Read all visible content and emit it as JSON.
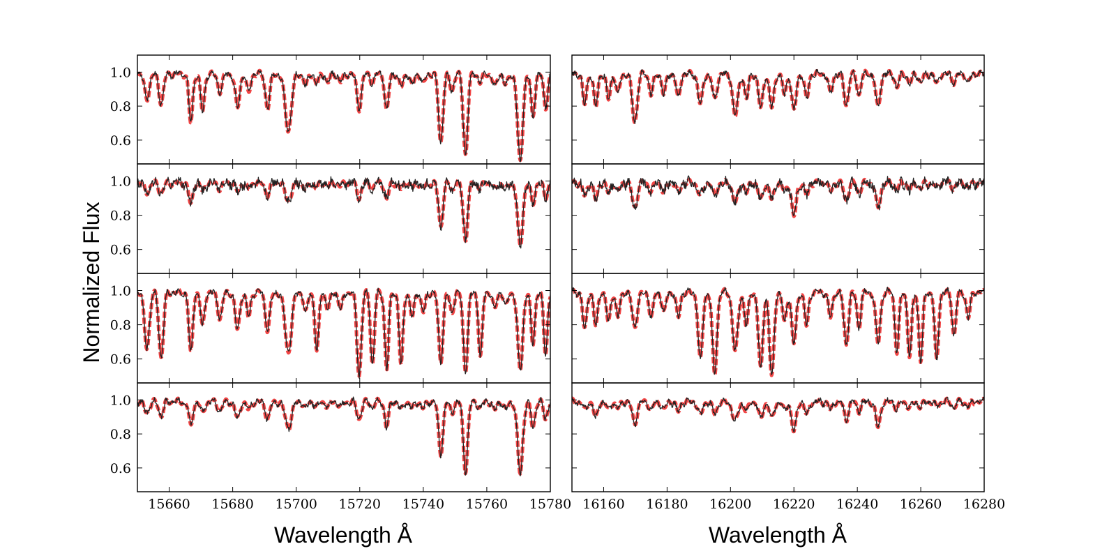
{
  "chart_data": {
    "type": "line",
    "layout": "4 rows x 2 columns, shared axes",
    "ylabel": "Normalized Flux",
    "ylim": [
      0.46,
      1.1
    ],
    "yticks": [
      "0.6",
      "0.8",
      "1.0"
    ],
    "columns": [
      {
        "xlabel": "Wavelength Å",
        "xlim": [
          15650,
          15780
        ],
        "xticks": [
          "15660",
          "15680",
          "15700",
          "15720",
          "15740",
          "15760",
          "15780"
        ],
        "lines": [
          {
            "center": 15653,
            "width": 0.8
          },
          {
            "center": 15657.5,
            "width": 0.7
          },
          {
            "center": 15666.8,
            "width": 0.6
          },
          {
            "center": 15670.5,
            "width": 0.6
          },
          {
            "center": 15676.0,
            "width": 0.7
          },
          {
            "center": 15681.5,
            "width": 0.7
          },
          {
            "center": 15685.0,
            "width": 0.6
          },
          {
            "center": 15691.0,
            "width": 0.7
          },
          {
            "center": 15697.5,
            "width": 1.0
          },
          {
            "center": 15703.0,
            "width": 0.6
          },
          {
            "center": 15706.5,
            "width": 0.6
          },
          {
            "center": 15710.0,
            "width": 0.6
          },
          {
            "center": 15714.0,
            "width": 0.6
          },
          {
            "center": 15719.8,
            "width": 0.7
          },
          {
            "center": 15724.0,
            "width": 0.6
          },
          {
            "center": 15728.5,
            "width": 0.6
          },
          {
            "center": 15733.0,
            "width": 0.6
          },
          {
            "center": 15736.5,
            "width": 0.6
          },
          {
            "center": 15740.0,
            "width": 0.6
          },
          {
            "center": 15745.5,
            "width": 0.7
          },
          {
            "center": 15749.0,
            "width": 0.6
          },
          {
            "center": 15753.3,
            "width": 0.7
          },
          {
            "center": 15758.0,
            "width": 0.6
          },
          {
            "center": 15762.5,
            "width": 0.6
          },
          {
            "center": 15766.0,
            "width": 0.6
          },
          {
            "center": 15770.5,
            "width": 0.8
          },
          {
            "center": 15774.5,
            "width": 0.6
          },
          {
            "center": 15778.5,
            "width": 0.6
          }
        ],
        "panels": [
          {
            "depths": [
              0.14,
              0.17,
              0.29,
              0.22,
              0.1,
              0.2,
              0.12,
              0.2,
              0.33,
              0.07,
              0.06,
              0.05,
              0.05,
              0.2,
              0.05,
              0.22,
              0.08,
              0.07,
              0.06,
              0.4,
              0.1,
              0.47,
              0.05,
              0.08,
              0.07,
              0.52,
              0.25,
              0.2
            ]
          },
          {
            "depths": [
              0.05,
              0.06,
              0.13,
              0.05,
              0.03,
              0.05,
              0.04,
              0.07,
              0.1,
              0.04,
              0.03,
              0.02,
              0.02,
              0.08,
              0.03,
              0.1,
              0.04,
              0.03,
              0.03,
              0.25,
              0.04,
              0.33,
              0.03,
              0.04,
              0.04,
              0.37,
              0.12,
              0.08
            ]
          },
          {
            "depths": [
              0.32,
              0.38,
              0.36,
              0.2,
              0.15,
              0.22,
              0.15,
              0.22,
              0.35,
              0.12,
              0.35,
              0.1,
              0.1,
              0.48,
              0.42,
              0.45,
              0.43,
              0.15,
              0.12,
              0.4,
              0.12,
              0.45,
              0.38,
              0.1,
              0.08,
              0.45,
              0.3,
              0.35
            ]
          },
          {
            "depths": [
              0.06,
              0.08,
              0.15,
              0.07,
              0.05,
              0.1,
              0.05,
              0.1,
              0.15,
              0.04,
              0.03,
              0.03,
              0.03,
              0.1,
              0.03,
              0.15,
              0.05,
              0.04,
              0.04,
              0.3,
              0.06,
              0.4,
              0.04,
              0.05,
              0.05,
              0.42,
              0.15,
              0.1
            ]
          }
        ]
      },
      {
        "xlabel": "Wavelength Å",
        "xlim": [
          16150,
          16280
        ],
        "xticks": [
          "16160",
          "16180",
          "16200",
          "16220",
          "16240",
          "16260",
          "16280"
        ],
        "lines": [
          {
            "center": 16154.0,
            "width": 0.6
          },
          {
            "center": 16157.5,
            "width": 0.6
          },
          {
            "center": 16161.5,
            "width": 0.6
          },
          {
            "center": 16164.5,
            "width": 0.6
          },
          {
            "center": 16169.8,
            "width": 0.8
          },
          {
            "center": 16175.0,
            "width": 0.6
          },
          {
            "center": 16179.0,
            "width": 0.6
          },
          {
            "center": 16183.5,
            "width": 0.6
          },
          {
            "center": 16190.5,
            "width": 0.7
          },
          {
            "center": 16195.0,
            "width": 0.7
          },
          {
            "center": 16201.5,
            "width": 0.8
          },
          {
            "center": 16205.0,
            "width": 0.6
          },
          {
            "center": 16209.5,
            "width": 0.7
          },
          {
            "center": 16213.0,
            "width": 0.7
          },
          {
            "center": 16217.0,
            "width": 0.6
          },
          {
            "center": 16220.0,
            "width": 0.7
          },
          {
            "center": 16224.0,
            "width": 0.6
          },
          {
            "center": 16231.5,
            "width": 0.6
          },
          {
            "center": 16236.5,
            "width": 0.7
          },
          {
            "center": 16240.5,
            "width": 0.6
          },
          {
            "center": 16246.5,
            "width": 0.7
          },
          {
            "center": 16252.5,
            "width": 0.6
          },
          {
            "center": 16256.5,
            "width": 0.6
          },
          {
            "center": 16260.0,
            "width": 0.6
          },
          {
            "center": 16265.0,
            "width": 0.6
          },
          {
            "center": 16270.5,
            "width": 0.6
          },
          {
            "center": 16275.0,
            "width": 0.6
          }
        ],
        "panels": [
          {
            "depths": [
              0.18,
              0.2,
              0.15,
              0.12,
              0.28,
              0.12,
              0.12,
              0.15,
              0.18,
              0.15,
              0.25,
              0.15,
              0.2,
              0.2,
              0.12,
              0.22,
              0.15,
              0.12,
              0.18,
              0.12,
              0.2,
              0.08,
              0.06,
              0.05,
              0.06,
              0.05,
              0.05
            ]
          },
          {
            "depths": [
              0.08,
              0.1,
              0.06,
              0.05,
              0.14,
              0.05,
              0.06,
              0.06,
              0.08,
              0.07,
              0.12,
              0.06,
              0.1,
              0.1,
              0.05,
              0.2,
              0.08,
              0.05,
              0.1,
              0.06,
              0.15,
              0.04,
              0.04,
              0.03,
              0.03,
              0.03,
              0.03
            ]
          },
          {
            "depths": [
              0.22,
              0.2,
              0.18,
              0.15,
              0.2,
              0.15,
              0.12,
              0.15,
              0.4,
              0.48,
              0.35,
              0.2,
              0.45,
              0.5,
              0.18,
              0.3,
              0.2,
              0.15,
              0.3,
              0.2,
              0.3,
              0.35,
              0.38,
              0.4,
              0.4,
              0.25,
              0.15
            ]
          },
          {
            "depths": [
              0.05,
              0.1,
              0.05,
              0.04,
              0.12,
              0.05,
              0.05,
              0.06,
              0.08,
              0.07,
              0.12,
              0.06,
              0.1,
              0.1,
              0.05,
              0.18,
              0.08,
              0.05,
              0.1,
              0.05,
              0.15,
              0.04,
              0.04,
              0.03,
              0.03,
              0.03,
              0.03
            ]
          }
        ]
      }
    ]
  }
}
